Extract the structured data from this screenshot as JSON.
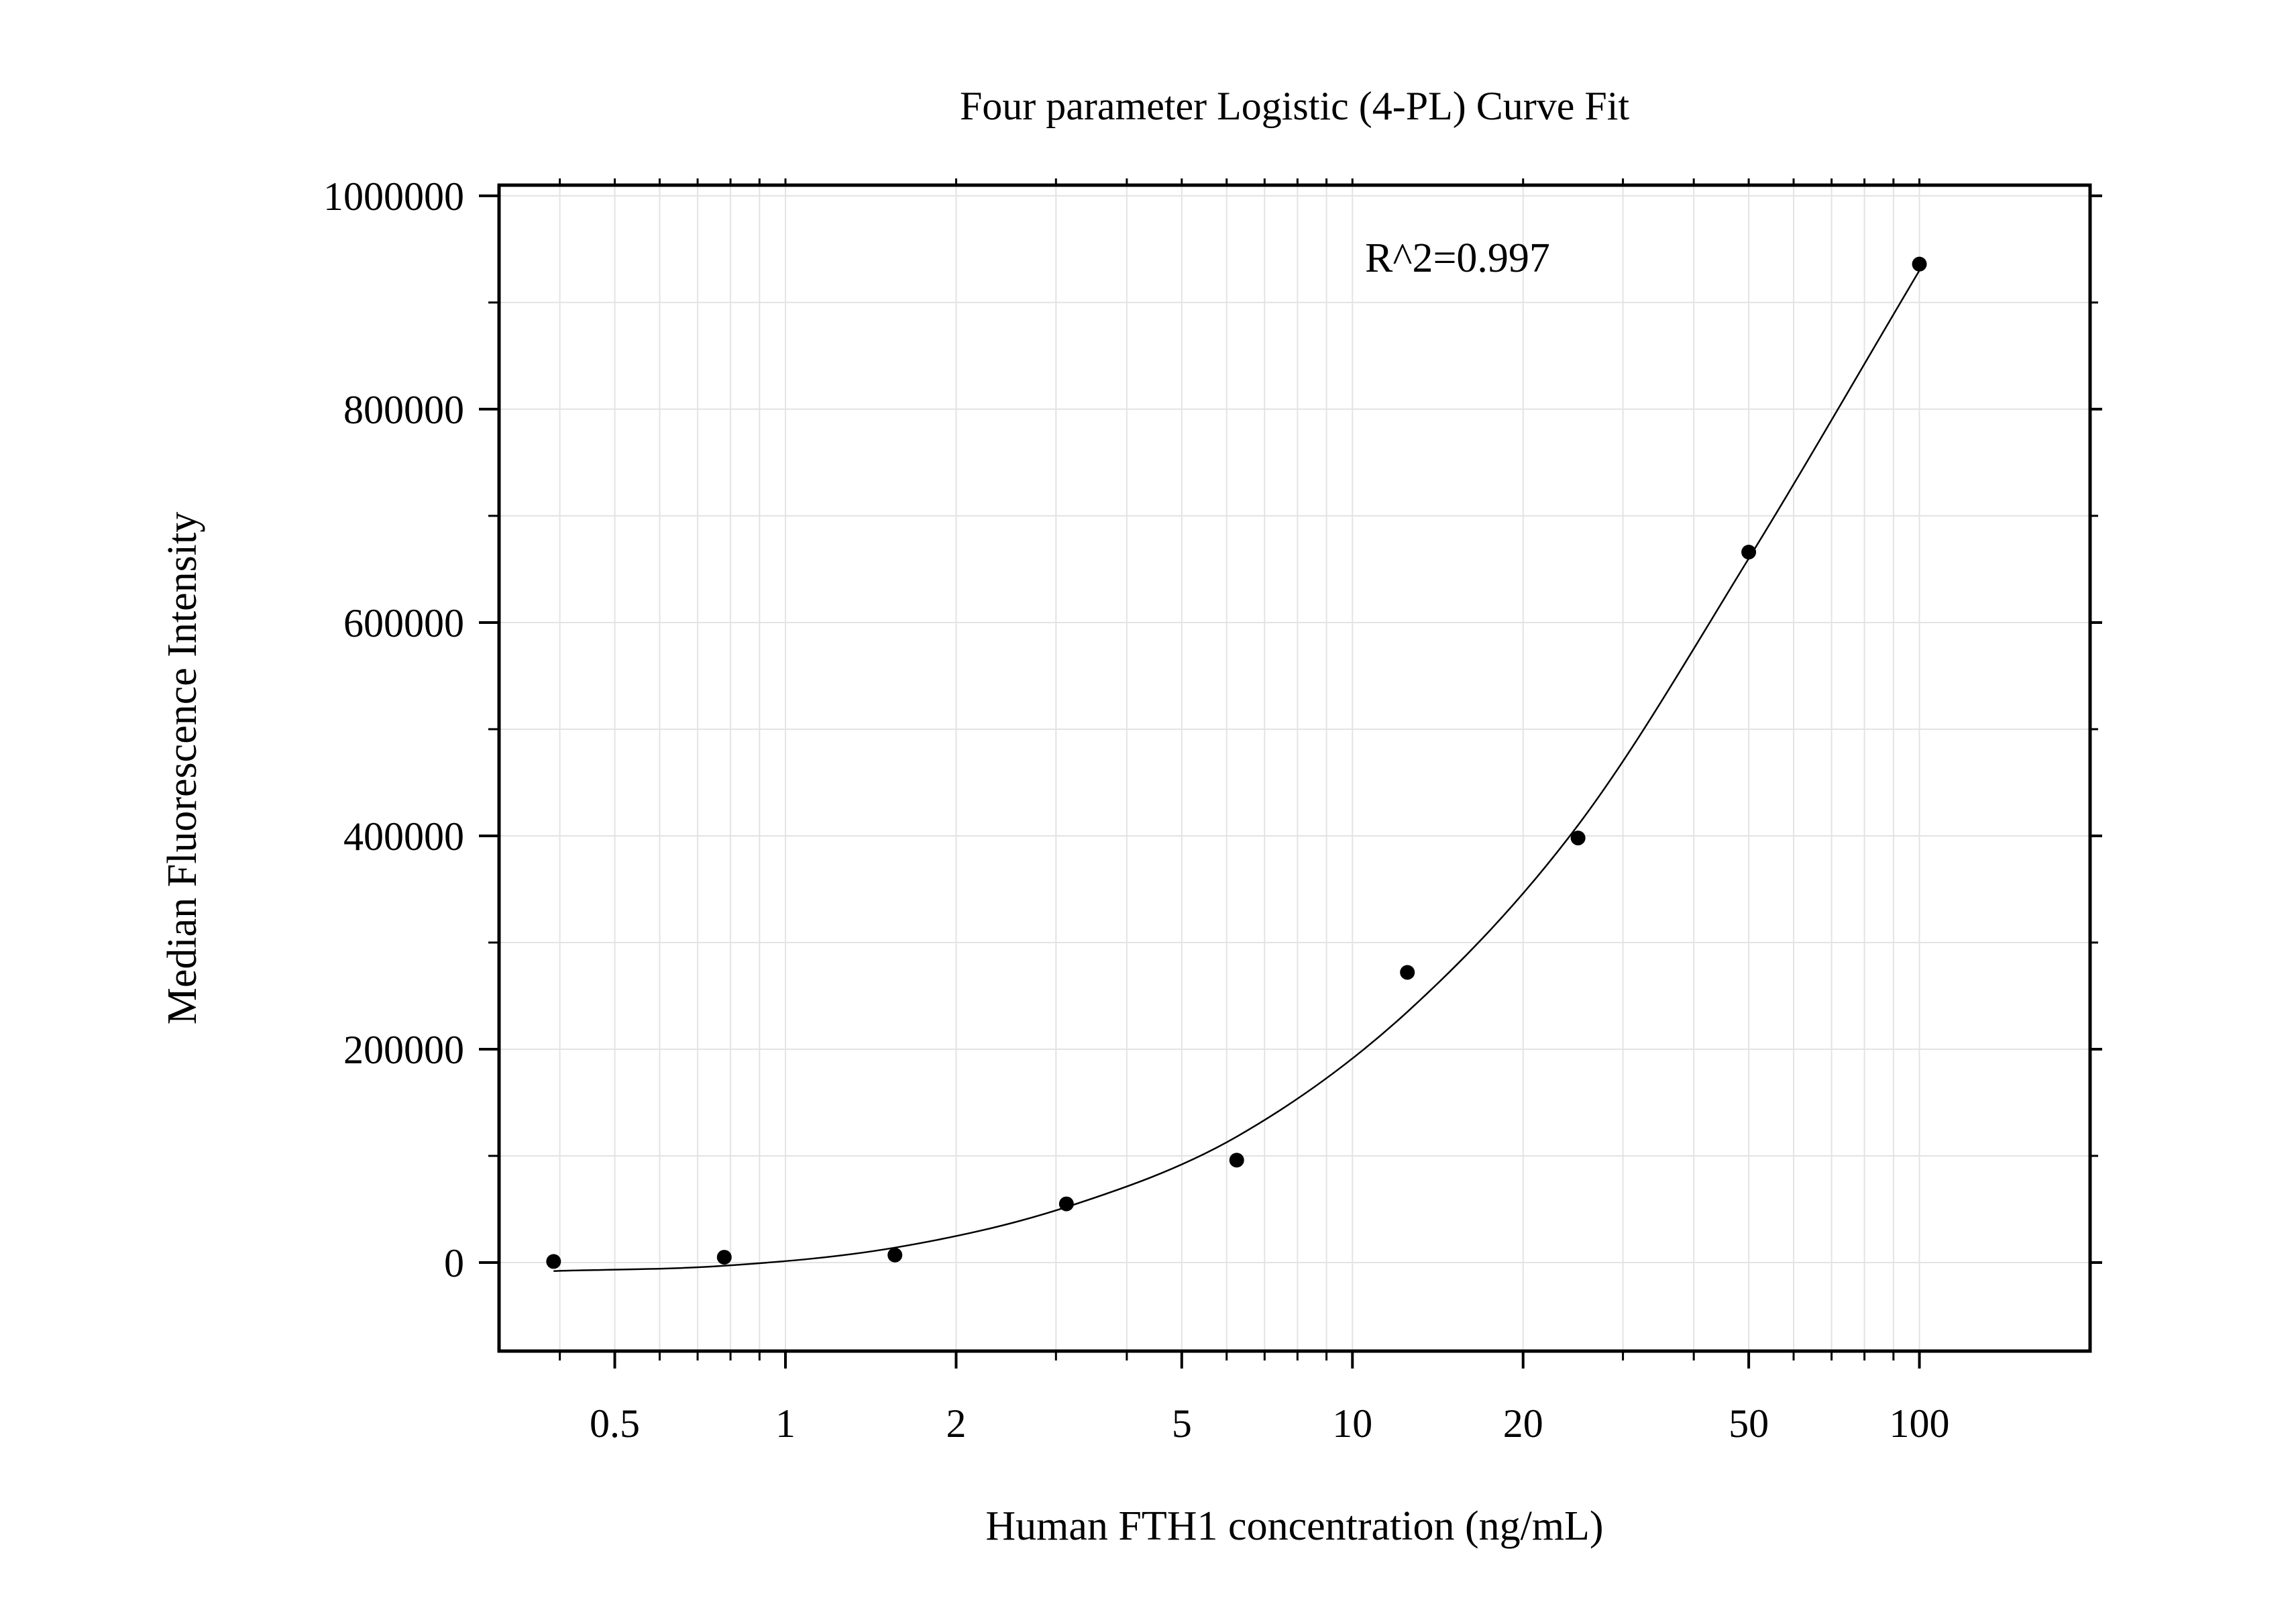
{
  "chart_data": {
    "type": "scatter",
    "title": "Four parameter Logistic (4-PL) Curve Fit",
    "xlabel": "Human FTH1 concentration (ng/mL)",
    "ylabel": "Median Fluorescence Intensity",
    "x_scale": "log",
    "xlim": [
      0.3125,
      200
    ],
    "ylim": [
      -83000,
      1010000
    ],
    "x_ticks": [
      {
        "value": 0.5,
        "label": "0.5"
      },
      {
        "value": 1,
        "label": "1"
      },
      {
        "value": 2,
        "label": "2"
      },
      {
        "value": 5,
        "label": "5"
      },
      {
        "value": 10,
        "label": "10"
      },
      {
        "value": 20,
        "label": "20"
      },
      {
        "value": 50,
        "label": "50"
      },
      {
        "value": 100,
        "label": "100"
      }
    ],
    "y_ticks": [
      {
        "value": 0,
        "label": "0"
      },
      {
        "value": 200000,
        "label": "200000"
      },
      {
        "value": 400000,
        "label": "400000"
      },
      {
        "value": 600000,
        "label": "600000"
      },
      {
        "value": 800000,
        "label": "800000"
      },
      {
        "value": 1000000,
        "label": "1000000"
      }
    ],
    "grid": true,
    "annotation": "R^2=0.997",
    "series": [
      {
        "type": "scatter",
        "x": [
          0.39,
          0.78,
          1.56,
          3.13,
          6.25,
          12.5,
          25,
          50,
          100
        ],
        "y": [
          1000,
          5000,
          7000,
          55000,
          96000,
          272000,
          398000,
          666000,
          936000
        ]
      }
    ],
    "fit_curve": {
      "x": [
        0.39,
        0.78,
        1.56,
        3.13,
        6.25,
        12.5,
        25,
        50,
        100
      ],
      "y": [
        -8000,
        -3000,
        14000,
        52000,
        118000,
        235000,
        410000,
        660000,
        930000
      ]
    },
    "colors": {
      "points": "#000000",
      "curve": "#000000",
      "grid": "#e3e3e3",
      "frame": "#000000"
    }
  }
}
